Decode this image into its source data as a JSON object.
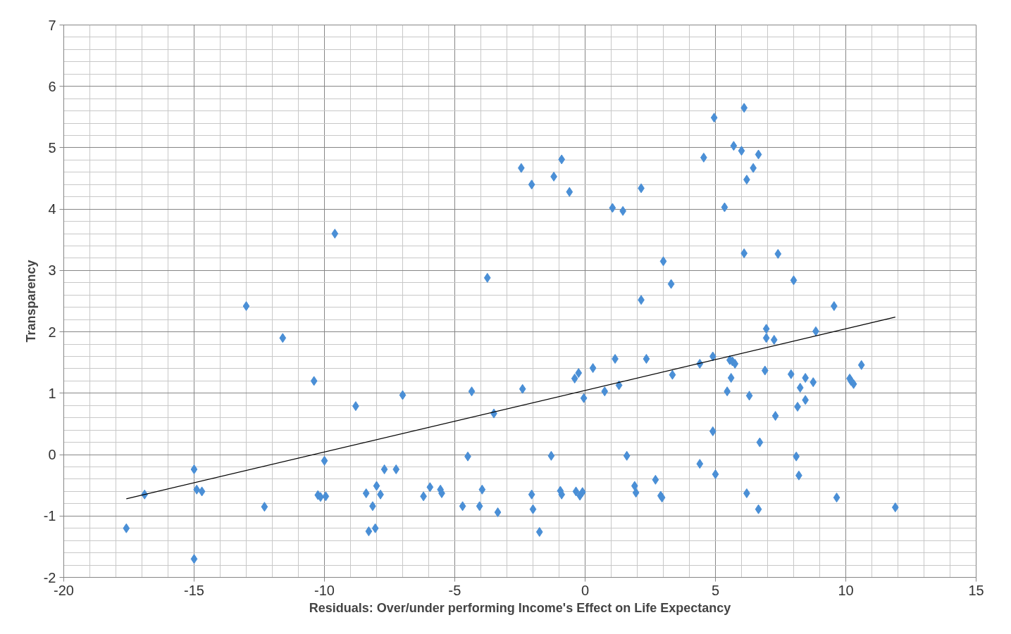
{
  "chart_data": {
    "type": "scatter",
    "xlabel": "Residuals: Over/under performing Income's Effect on Life Expectancy",
    "ylabel": "Transparency",
    "xlim": [
      -20,
      15
    ],
    "ylim": [
      -2,
      7
    ],
    "xticks": [
      -20,
      -15,
      -10,
      -5,
      0,
      5,
      10,
      15
    ],
    "yticks": [
      -2,
      -1,
      0,
      1,
      2,
      3,
      4,
      5,
      6,
      7
    ],
    "grid": true,
    "marker": "diamond",
    "series": [
      {
        "color": "#4a8fd6",
        "x": [
          -17.6,
          -16.9,
          -15.0,
          -15.0,
          -14.9,
          -14.7,
          -13.0,
          -12.3,
          -11.6,
          -10.4,
          -10.25,
          -10.15,
          -10.0,
          -9.95,
          -9.6,
          -8.8,
          -8.4,
          -8.3,
          -8.15,
          -8.05,
          -8.0,
          -7.85,
          -7.7,
          -7.25,
          -7.0,
          -6.2,
          -5.95,
          -5.55,
          -5.5,
          -4.7,
          -4.5,
          -4.35,
          -3.95,
          -4.05,
          -3.75,
          -3.5,
          -3.35,
          -2.45,
          -2.4,
          -2.05,
          -2.05,
          -2.0,
          -1.75,
          -1.3,
          -1.2,
          -0.95,
          -0.9,
          -0.9,
          -0.6,
          -0.4,
          -0.35,
          -0.25,
          -0.2,
          -0.1,
          -0.05,
          0.3,
          0.75,
          1.05,
          1.15,
          1.3,
          1.45,
          1.6,
          1.9,
          1.95,
          2.15,
          2.15,
          2.35,
          2.7,
          2.9,
          2.95,
          3.0,
          3.3,
          3.35,
          4.4,
          4.4,
          4.55,
          4.9,
          4.9,
          4.95,
          5.0,
          5.35,
          5.45,
          5.55,
          5.65,
          5.75,
          5.6,
          5.7,
          6.0,
          6.1,
          6.1,
          6.2,
          6.2,
          6.3,
          6.45,
          6.65,
          6.65,
          6.7,
          6.9,
          6.95,
          6.95,
          7.25,
          7.3,
          7.4,
          7.9,
          8.0,
          8.1,
          8.15,
          8.2,
          8.25,
          8.45,
          8.45,
          8.75,
          8.85,
          9.55,
          9.65,
          10.15,
          10.2,
          10.3,
          10.6,
          11.9
        ],
        "values": [
          -1.2,
          -0.65,
          -0.24,
          -1.7,
          -0.57,
          -0.6,
          2.42,
          -0.85,
          1.9,
          1.2,
          -0.66,
          -0.69,
          -0.1,
          -0.68,
          3.6,
          0.79,
          -0.63,
          -1.25,
          -0.84,
          -1.2,
          -0.51,
          -0.65,
          -0.24,
          -0.24,
          0.97,
          -0.68,
          -0.53,
          -0.57,
          -0.63,
          -0.84,
          -0.03,
          1.03,
          -0.57,
          -0.84,
          2.88,
          0.67,
          -0.94,
          4.67,
          1.07,
          4.4,
          -0.65,
          -0.89,
          -1.26,
          -0.02,
          4.53,
          -0.59,
          4.81,
          -0.65,
          4.28,
          1.24,
          -0.6,
          1.33,
          -0.67,
          -0.61,
          0.92,
          1.41,
          1.03,
          4.02,
          1.56,
          1.13,
          3.97,
          -0.02,
          -0.51,
          -0.62,
          4.34,
          2.52,
          1.56,
          -0.41,
          -0.67,
          -0.7,
          3.15,
          2.78,
          1.3,
          -0.15,
          1.48,
          4.84,
          0.38,
          1.6,
          5.49,
          -0.32,
          4.03,
          1.03,
          1.54,
          1.52,
          1.48,
          1.25,
          5.03,
          4.95,
          5.65,
          3.28,
          4.48,
          -0.63,
          0.96,
          4.67,
          -0.89,
          4.89,
          0.2,
          1.37,
          2.05,
          1.9,
          1.87,
          0.63,
          3.27,
          1.31,
          2.84,
          -0.03,
          0.78,
          -0.34,
          1.09,
          1.25,
          0.89,
          1.18,
          2.01,
          2.42,
          -0.7,
          1.24,
          1.2,
          1.15,
          1.46,
          -0.86
        ]
      },
      {
        "type": "line",
        "color": "#000000",
        "x": [
          -17.6,
          11.9
        ],
        "values": [
          -0.72,
          2.24
        ],
        "marker": "none"
      }
    ]
  }
}
